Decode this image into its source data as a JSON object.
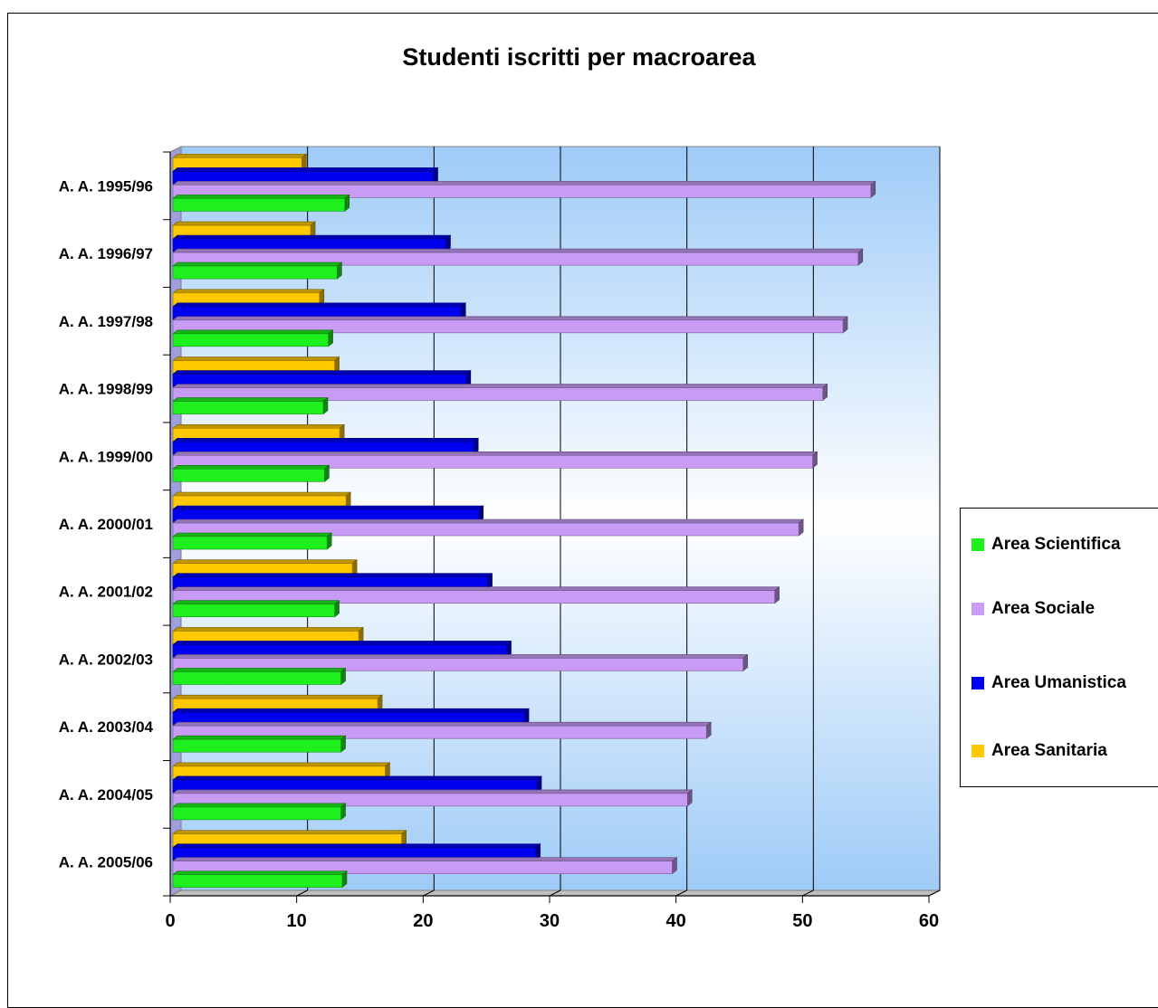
{
  "chart_data": {
    "type": "bar",
    "orientation": "horizontal",
    "title": "Studenti iscritti per macroarea",
    "xlabel": "",
    "ylabel": "",
    "xlim": [
      0,
      60
    ],
    "xticks": [
      "0",
      "10",
      "20",
      "30",
      "40",
      "50",
      "60"
    ],
    "grid": true,
    "legend_position": "right",
    "categories": [
      "A. A. 1995/96",
      "A. A. 1996/97",
      "A. A. 1997/98",
      "A. A. 1998/99",
      "A. A. 1999/00",
      "A. A. 2000/01",
      "A. A. 2001/02",
      "A. A. 2002/03",
      "A. A. 2003/04",
      "A. A. 2004/05",
      "A. A. 2005/06"
    ],
    "series": [
      {
        "name": "Area Sanitaria",
        "color": "#FFC800",
        "values": [
          10.4,
          11.1,
          11.8,
          13.0,
          13.4,
          13.9,
          14.4,
          14.9,
          16.4,
          17.0,
          18.3
        ]
      },
      {
        "name": "Area Umanistica",
        "color": "#0000F0",
        "values": [
          20.8,
          21.8,
          23.0,
          23.4,
          24.0,
          24.4,
          25.1,
          26.6,
          28.0,
          29.0,
          28.9
        ]
      },
      {
        "name": "Area Sociale",
        "color": "#C89BF5",
        "values": [
          55.4,
          54.4,
          53.2,
          51.6,
          50.8,
          49.7,
          47.8,
          45.3,
          42.4,
          40.9,
          39.7
        ]
      },
      {
        "name": "Area Scientifica",
        "color": "#1EF01E",
        "values": [
          13.8,
          13.2,
          12.5,
          12.1,
          12.2,
          12.4,
          13.0,
          13.5,
          13.5,
          13.5,
          13.6
        ]
      }
    ],
    "legend_order": [
      "Area Scientifica",
      "Area Sociale",
      "Area Umanistica",
      "Area Sanitaria"
    ]
  }
}
